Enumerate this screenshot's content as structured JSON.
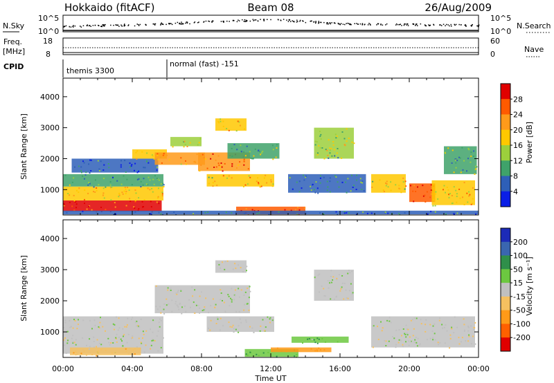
{
  "header": {
    "station": "Hokkaido (fitACF)",
    "beam": "Beam 08",
    "date": "26/Aug/2009"
  },
  "strip": {
    "nsky_label": "N.Sky",
    "nsearch_label": "N.Search",
    "freq_label_1": "Freq.",
    "freq_label_2": "[MHz]",
    "nave_label": "Nave",
    "cpid_label": "CPID",
    "left_top_tick": "10^5",
    "left_bot_tick": "10^0",
    "right_top_tick": "10^5",
    "right_bot_tick": "10^0",
    "freq_ticks": [
      "18",
      "8"
    ],
    "nave_ticks": [
      "60",
      "0"
    ],
    "cpid_segments": [
      {
        "start_hour": 0,
        "label": "themis 3300"
      },
      {
        "start_hour": 6,
        "label": "normal (fast) -151"
      }
    ]
  },
  "axes": {
    "xlabel": "Time UT",
    "ylabel": "Slant Range [km]",
    "x_ticks": [
      "00:00",
      "04:00",
      "08:00",
      "12:00",
      "16:00",
      "20:00",
      "00:00"
    ],
    "y_ticks": [
      "1000",
      "2000",
      "3000",
      "4000"
    ]
  },
  "colorbars": {
    "power": {
      "title": "Power [dB]",
      "ticks": [
        "28",
        "24",
        "20",
        "16",
        "12",
        "8",
        "4"
      ],
      "colors": [
        "#e00000",
        "#ff5a00",
        "#ff9a1a",
        "#ffc800",
        "#9ccf3c",
        "#3fa26a",
        "#2e5fb8",
        "#0a1ee6"
      ]
    },
    "velocity": {
      "title": "Velocity [m s⁻¹]",
      "ticks": [
        "200",
        "100",
        "50",
        "15",
        "-15",
        "-50",
        "-100",
        "-200"
      ],
      "colors": [
        "#1c2bb8",
        "#3a66b0",
        "#2f8f4a",
        "#6cc840",
        "#c0c0c0",
        "#f5c060",
        "#ff9a18",
        "#ff6000",
        "#e00000"
      ]
    }
  },
  "chart_data": [
    {
      "type": "heatmap",
      "title": "Power [dB]",
      "xlabel": "Time UT",
      "ylabel": "Slant Range [km]",
      "xlim_hours": [
        0,
        24
      ],
      "ylim_km": [
        180,
        4600
      ],
      "colorbar_range_db": [
        0,
        32
      ],
      "regions": [
        {
          "t0": 0.0,
          "t1": 5.7,
          "r0": 300,
          "r1": 650,
          "level": 29
        },
        {
          "t0": 0.0,
          "t1": 5.8,
          "r0": 650,
          "r1": 1100,
          "level": 20
        },
        {
          "t0": 0.0,
          "t1": 5.8,
          "r0": 1100,
          "r1": 1500,
          "level": 10
        },
        {
          "t0": 0.5,
          "t1": 5.5,
          "r0": 1550,
          "r1": 2000,
          "level": 6
        },
        {
          "t0": 4.0,
          "t1": 6.0,
          "r0": 2000,
          "r1": 2300,
          "level": 18
        },
        {
          "t0": 5.3,
          "t1": 8.2,
          "r0": 1800,
          "r1": 2200,
          "level": 22
        },
        {
          "t0": 6.2,
          "t1": 8.0,
          "r0": 2400,
          "r1": 2700,
          "level": 15
        },
        {
          "t0": 7.8,
          "t1": 10.8,
          "r0": 1600,
          "r1": 2200,
          "level": 24
        },
        {
          "t0": 8.3,
          "t1": 12.2,
          "r0": 1100,
          "r1": 1500,
          "level": 18
        },
        {
          "t0": 9.5,
          "t1": 12.5,
          "r0": 2000,
          "r1": 2500,
          "level": 12
        },
        {
          "t0": 10.0,
          "t1": 14.0,
          "r0": 200,
          "r1": 450,
          "level": 27
        },
        {
          "t0": 8.8,
          "t1": 10.6,
          "r0": 2900,
          "r1": 3300,
          "level": 20
        },
        {
          "t0": 14.5,
          "t1": 16.8,
          "r0": 2000,
          "r1": 3000,
          "level": 14
        },
        {
          "t0": 13.0,
          "t1": 17.5,
          "r0": 900,
          "r1": 1500,
          "level": 8
        },
        {
          "t0": 17.8,
          "t1": 19.8,
          "r0": 900,
          "r1": 1500,
          "level": 18
        },
        {
          "t0": 20.0,
          "t1": 21.5,
          "r0": 600,
          "r1": 1200,
          "level": 28
        },
        {
          "t0": 21.3,
          "t1": 23.8,
          "r0": 500,
          "r1": 1300,
          "level": 19
        },
        {
          "t0": 22.0,
          "t1": 23.9,
          "r0": 1500,
          "r1": 2400,
          "level": 11
        },
        {
          "t0": 0.0,
          "t1": 24.0,
          "r0": 200,
          "r1": 320,
          "level": 6
        }
      ]
    },
    {
      "type": "heatmap",
      "title": "Velocity [m s⁻¹]",
      "xlabel": "Time UT",
      "ylabel": "Slant Range [km]",
      "xlim_hours": [
        0,
        24
      ],
      "ylim_km": [
        180,
        4600
      ],
      "colorbar_range_ms": [
        -250,
        250
      ],
      "regions": [
        {
          "t0": 0.0,
          "t1": 5.8,
          "r0": 300,
          "r1": 1500,
          "level": 0
        },
        {
          "t0": 0.4,
          "t1": 4.5,
          "r0": 250,
          "r1": 500,
          "level": -40
        },
        {
          "t0": 5.3,
          "t1": 10.8,
          "r0": 1600,
          "r1": 2500,
          "level": 0
        },
        {
          "t0": 8.3,
          "t1": 12.2,
          "r0": 1000,
          "r1": 1500,
          "level": 0
        },
        {
          "t0": 8.8,
          "t1": 10.6,
          "r0": 2900,
          "r1": 3300,
          "level": 0
        },
        {
          "t0": 10.5,
          "t1": 13.6,
          "r0": 200,
          "r1": 450,
          "level": 40
        },
        {
          "t0": 13.2,
          "t1": 16.5,
          "r0": 650,
          "r1": 850,
          "level": 40
        },
        {
          "t0": 14.5,
          "t1": 16.8,
          "r0": 2000,
          "r1": 3000,
          "level": 0
        },
        {
          "t0": 17.8,
          "t1": 23.8,
          "r0": 500,
          "r1": 1500,
          "level": 0
        },
        {
          "t0": 12.0,
          "t1": 15.5,
          "r0": 350,
          "r1": 500,
          "level": -70
        }
      ]
    },
    {
      "type": "line",
      "title": "N.Sky",
      "x_hours": [
        0,
        2,
        4,
        6,
        8,
        10,
        12,
        14,
        16,
        18,
        20,
        22,
        24
      ],
      "y_fraction": [
        0.35,
        0.4,
        0.45,
        0.55,
        0.65,
        0.75,
        0.85,
        0.7,
        0.55,
        0.5,
        0.48,
        0.45,
        0.4
      ]
    }
  ]
}
